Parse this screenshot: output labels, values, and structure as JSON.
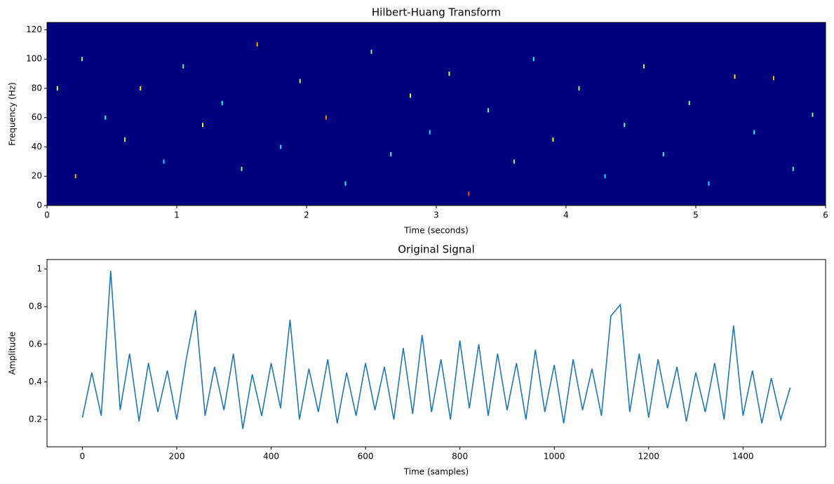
{
  "chart_data": [
    {
      "type": "heatmap",
      "title": "Hilbert-Huang Transform",
      "xlabel": "Time (seconds)",
      "ylabel": "Frequency (Hz)",
      "background": "#00007f",
      "colormap": "jet",
      "xlim": [
        0,
        6
      ],
      "ylim": [
        0,
        125
      ],
      "xticks": [
        0,
        1,
        2,
        3,
        4,
        5,
        6
      ],
      "yticks": [
        0,
        20,
        40,
        60,
        80,
        100,
        120
      ],
      "x": [
        0.08,
        0.22,
        0.27,
        0.45,
        0.6,
        0.72,
        0.9,
        1.05,
        1.2,
        1.35,
        1.5,
        1.62,
        1.8,
        1.95,
        2.15,
        2.3,
        2.5,
        2.65,
        2.8,
        2.95,
        3.1,
        3.25,
        3.4,
        3.6,
        3.75,
        3.9,
        4.1,
        4.3,
        4.45,
        4.6,
        4.75,
        4.95,
        5.1,
        5.3,
        5.45,
        5.6,
        5.75,
        5.9
      ],
      "y": [
        80,
        20,
        100,
        60,
        45,
        80,
        30,
        95,
        55,
        70,
        25,
        110,
        40,
        85,
        60,
        15,
        105,
        35,
        75,
        50,
        90,
        8,
        65,
        30,
        100,
        45,
        80,
        20,
        55,
        95,
        35,
        70,
        15,
        88,
        50,
        87,
        25,
        62
      ],
      "values": [
        0.6,
        0.7,
        0.5,
        0.4,
        0.55,
        0.65,
        0.35,
        0.45,
        0.6,
        0.4,
        0.5,
        0.7,
        0.35,
        0.55,
        0.75,
        0.4,
        0.5,
        0.45,
        0.6,
        0.35,
        0.55,
        0.8,
        0.45,
        0.5,
        0.4,
        0.6,
        0.5,
        0.35,
        0.45,
        0.55,
        0.4,
        0.5,
        0.35,
        0.65,
        0.4,
        0.7,
        0.45,
        0.5
      ]
    },
    {
      "type": "line",
      "title": "Original Signal",
      "xlabel": "Time (samples)",
      "ylabel": "Amplitude",
      "color": "#1f77b4",
      "xlim": [
        -75,
        1575
      ],
      "ylim": [
        0.055,
        1.05
      ],
      "xticks": [
        0,
        200,
        400,
        600,
        800,
        1000,
        1200,
        1400
      ],
      "yticks": [
        0.2,
        0.4,
        0.6,
        0.8,
        1.0
      ],
      "x": [
        0,
        20,
        40,
        60,
        80,
        100,
        120,
        140,
        160,
        180,
        200,
        220,
        240,
        260,
        280,
        300,
        320,
        340,
        360,
        380,
        400,
        420,
        440,
        460,
        480,
        500,
        520,
        540,
        560,
        580,
        600,
        620,
        640,
        660,
        680,
        700,
        720,
        740,
        760,
        780,
        800,
        820,
        840,
        860,
        880,
        900,
        920,
        940,
        960,
        980,
        1000,
        1020,
        1040,
        1060,
        1080,
        1100,
        1120,
        1140,
        1160,
        1180,
        1200,
        1220,
        1240,
        1260,
        1280,
        1300,
        1320,
        1340,
        1360,
        1380,
        1400,
        1420,
        1440,
        1460,
        1480,
        1500
      ],
      "values": [
        0.21,
        0.45,
        0.22,
        0.99,
        0.25,
        0.55,
        0.19,
        0.5,
        0.24,
        0.46,
        0.2,
        0.52,
        0.78,
        0.22,
        0.48,
        0.25,
        0.55,
        0.15,
        0.44,
        0.22,
        0.5,
        0.26,
        0.73,
        0.2,
        0.47,
        0.24,
        0.52,
        0.18,
        0.45,
        0.22,
        0.5,
        0.25,
        0.48,
        0.2,
        0.58,
        0.23,
        0.65,
        0.24,
        0.52,
        0.2,
        0.62,
        0.26,
        0.6,
        0.22,
        0.55,
        0.25,
        0.5,
        0.2,
        0.57,
        0.24,
        0.49,
        0.18,
        0.52,
        0.25,
        0.47,
        0.22,
        0.75,
        0.81,
        0.24,
        0.55,
        0.21,
        0.52,
        0.26,
        0.48,
        0.19,
        0.45,
        0.24,
        0.5,
        0.2,
        0.7,
        0.22,
        0.46,
        0.18,
        0.42,
        0.2,
        0.37
      ]
    }
  ]
}
